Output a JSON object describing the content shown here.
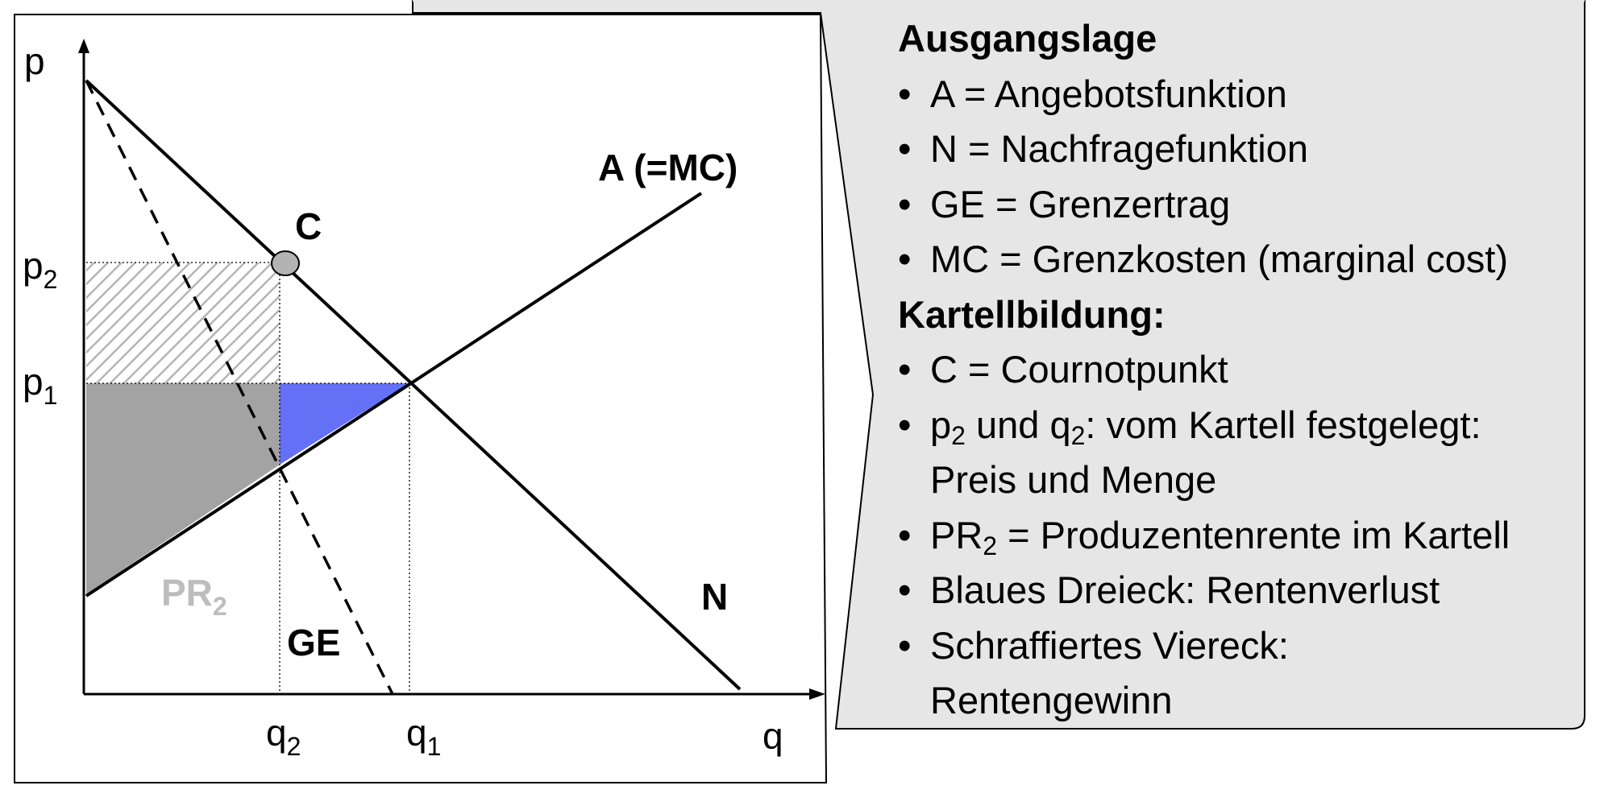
{
  "diagram": {
    "axis_labels": {
      "p": "p",
      "q": "q"
    },
    "price_ticks": [
      {
        "base": "p",
        "sub": "2"
      },
      {
        "base": "p",
        "sub": "1"
      }
    ],
    "quantity_ticks": [
      {
        "base": "q",
        "sub": "2"
      },
      {
        "base": "q",
        "sub": "1"
      }
    ],
    "curve_labels": {
      "supply": "A (=MC)",
      "demand": "N",
      "marginal_revenue": "GE",
      "cournot_point": "C"
    },
    "producer_rent_label": {
      "base": "PR",
      "sub": "2"
    },
    "colors": {
      "blue_triangle": "#6470f5",
      "producer_rent": "#a3a3a3",
      "hatch": "#b5b5b5",
      "cournot_point": "#b3b3b3",
      "rent_label": "#bdbdbd",
      "callout_fill": "#e6e6e6"
    }
  },
  "legend": {
    "heading1": "Ausgangslage",
    "items1": [
      "A = Angebotsfunktion",
      "N = Nachfragefunktion",
      "GE = Grenzertrag",
      "MC = Grenzkosten (marginal cost)"
    ],
    "heading2": "Kartellbildung:",
    "item_c": "C = Cournotpunkt",
    "item_pq": {
      "p": "p",
      "p_sub": "2",
      "und": " und q",
      "q_sub": "2",
      "rest": ": vom Kartell festgelegt:",
      "line2": "Preis und Menge"
    },
    "item_pr": {
      "pr": "PR",
      "pr_sub": "2",
      "rest": " = Produzentenrente im Kartell"
    },
    "item_blue": "Blaues Dreieck: Rentenverlust",
    "item_hatch": {
      "line1": "Schraffiertes Viereck:",
      "line2": "Rentengewinn"
    }
  }
}
